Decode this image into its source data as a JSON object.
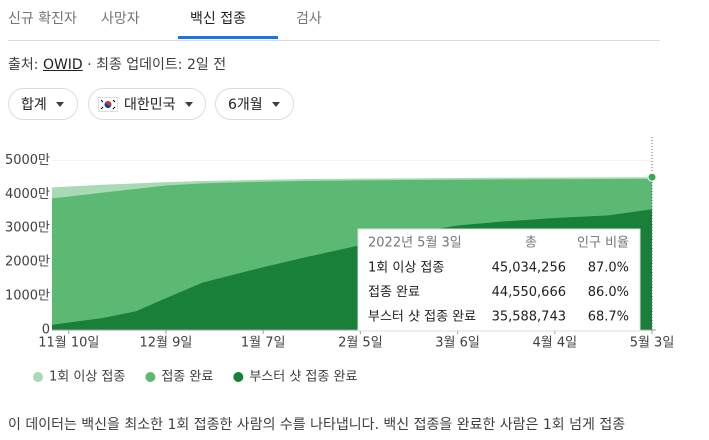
{
  "tabs": [
    "신규 확진자",
    "사망자",
    "백신 접종",
    "검사"
  ],
  "active_tab": 2,
  "source": {
    "prefix": "출처:",
    "name": "OWID",
    "updated": "· 최종 업데이트: 2일 전"
  },
  "filters": [
    "합계",
    "대한민국",
    "6개월"
  ],
  "chart_data": {
    "type": "area",
    "x": [
      "11-05",
      "11-10",
      "11-20",
      "11-30",
      "12-09",
      "12-20",
      "12-30",
      "01-07",
      "01-20",
      "02-05",
      "02-20",
      "03-06",
      "03-20",
      "04-04",
      "04-20",
      "05-03"
    ],
    "xticks": [
      {
        "value": "11-10",
        "label": "11월 10일"
      },
      {
        "value": "12-09",
        "label": "12월 9일"
      },
      {
        "value": "01-07",
        "label": "1월 7일"
      },
      {
        "value": "02-05",
        "label": "2월 5일"
      },
      {
        "value": "03-06",
        "label": "3월 6일"
      },
      {
        "value": "04-04",
        "label": "4월 4일"
      },
      {
        "value": "05-03",
        "label": "5월 3일"
      }
    ],
    "ylim": [
      0,
      56000000
    ],
    "yticks": [
      {
        "value": 0,
        "label": "0"
      },
      {
        "value": 10000000,
        "label": "1000만"
      },
      {
        "value": 20000000,
        "label": "2000만"
      },
      {
        "value": 30000000,
        "label": "3000만"
      },
      {
        "value": 40000000,
        "label": "4000만"
      },
      {
        "value": 50000000,
        "label": "5000만"
      }
    ],
    "grid": true,
    "series": [
      {
        "name": "1회 이상 접종",
        "color": "#a8dab5",
        "values": [
          42000000,
          42300000,
          42800000,
          43200000,
          43600000,
          43900000,
          44100000,
          44300000,
          44500000,
          44600000,
          44700000,
          44800000,
          44880000,
          44950000,
          45000000,
          45034256
        ]
      },
      {
        "name": "접종 완료",
        "color": "#5bb974",
        "values": [
          38800000,
          39300000,
          40500000,
          41600000,
          42600000,
          43200000,
          43500000,
          43700000,
          43900000,
          44100000,
          44200000,
          44300000,
          44380000,
          44450000,
          44500000,
          44550666
        ]
      },
      {
        "name": "부스터 샷 접종 완료",
        "color": "#188038",
        "values": [
          1500000,
          2200000,
          3500000,
          5500000,
          9400000,
          14000000,
          16500000,
          18500000,
          21500000,
          25000000,
          28500000,
          30800000,
          32000000,
          33000000,
          33800000,
          35588743
        ]
      }
    ],
    "tooltip": {
      "date": "2022년 5월 3일",
      "total_header": "총",
      "percent_header": "인구 비율",
      "totals": [
        {
          "value": 45034256,
          "label": "45,034,256"
        },
        {
          "value": 44550666,
          "label": "44,550,666"
        },
        {
          "value": 35588743,
          "label": "35,588,743"
        }
      ],
      "percents": [
        {
          "value": 87,
          "label": "87.0%"
        },
        {
          "value": 86,
          "label": "86.0%"
        },
        {
          "value": 68.7,
          "label": "68.7%"
        }
      ]
    }
  },
  "footer": "이 데이터는 백신을 최소한 1회 접종한 사람의 수를 나타냅니다. 백신 접종을 완료한 사람은 1회 넘게 접종"
}
